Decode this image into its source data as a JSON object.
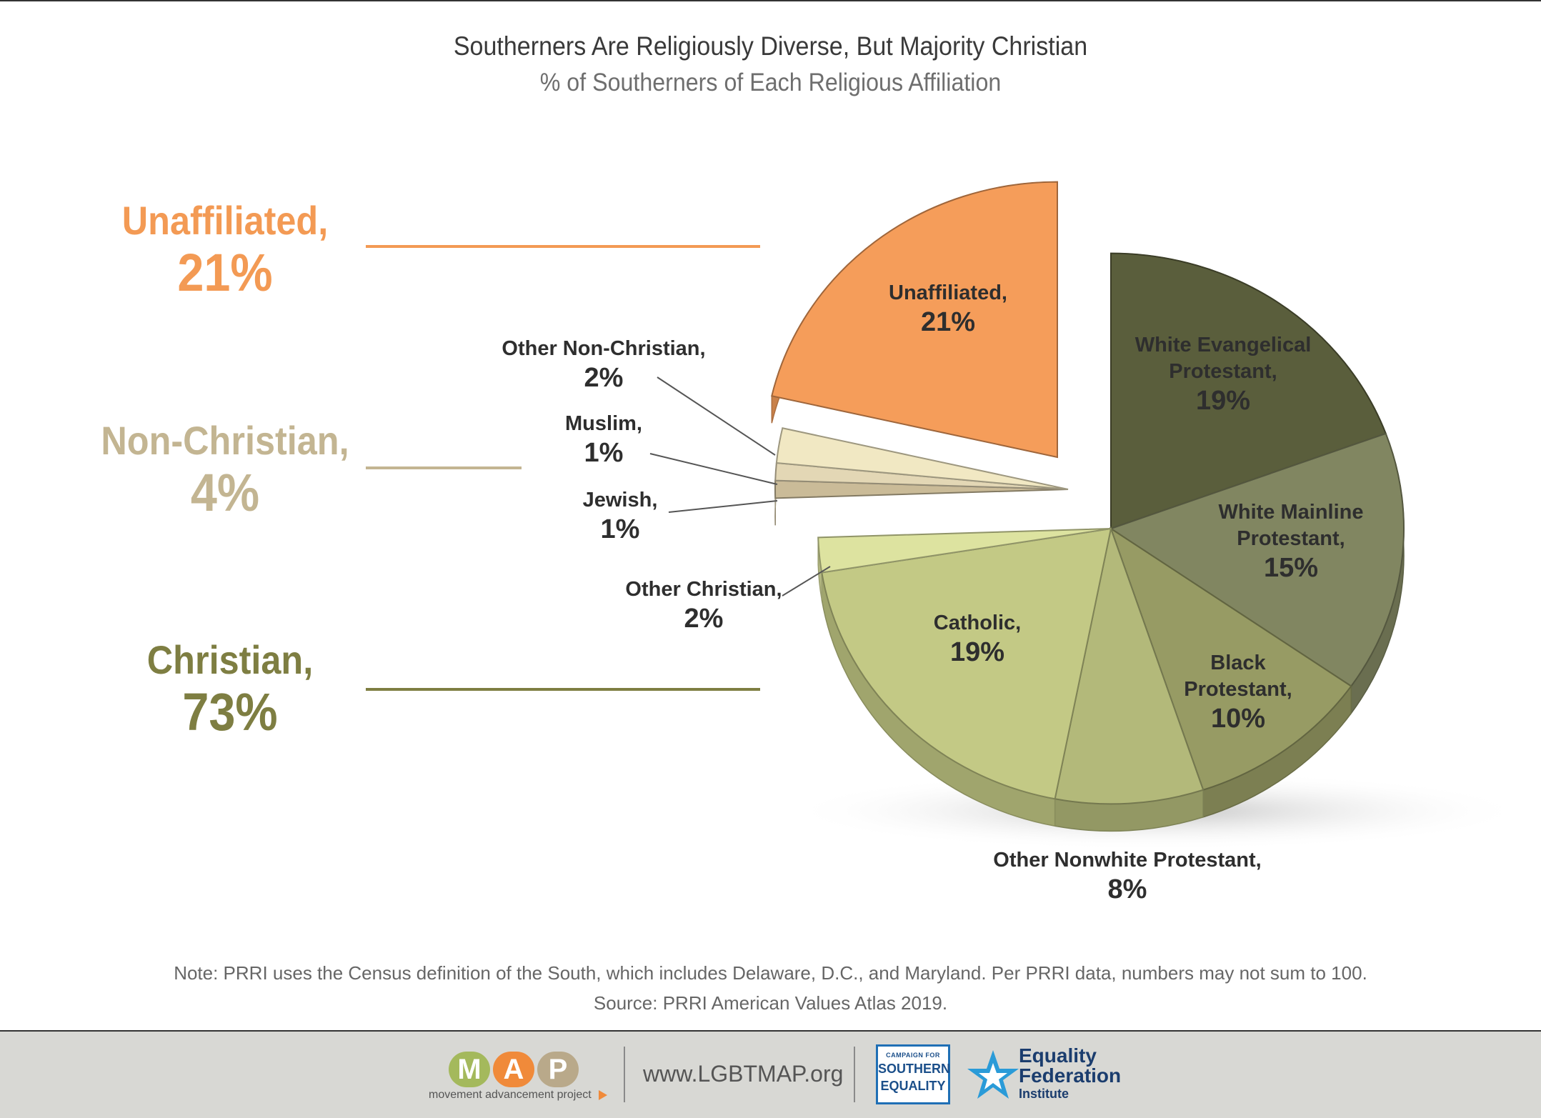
{
  "header": {
    "title": "Southerners Are Religiously Diverse, But Majority Christian",
    "subtitle": "% of Southerners of Each Religious Affiliation"
  },
  "groups": [
    {
      "name": "Unaffiliated,",
      "pct": "21%",
      "color": "#f39a54"
    },
    {
      "name": "Non-Christian,",
      "pct": "4%",
      "color": "#c3b592"
    },
    {
      "name": "Christian,",
      "pct": "73%",
      "color": "#7e7e42"
    }
  ],
  "chart_data": {
    "type": "pie",
    "title": "Southerners Are Religiously Diverse, But Majority Christian",
    "subtitle": "% of Southerners of Each Religious Affiliation",
    "slices": [
      {
        "label": "White Evangelical Protestant,",
        "value": 19,
        "group": "Christian",
        "color": "#5a5e3c"
      },
      {
        "label": "White Mainline Protestant,",
        "value": 15,
        "group": "Christian",
        "color": "#818661"
      },
      {
        "label": "Black Protestant,",
        "value": 10,
        "group": "Christian",
        "color": "#979b64"
      },
      {
        "label": "Other Nonwhite Protestant,",
        "value": 8,
        "group": "Christian",
        "color": "#b3b97a"
      },
      {
        "label": "Catholic,",
        "value": 19,
        "group": "Christian",
        "color": "#c3c985"
      },
      {
        "label": "Other Christian,",
        "value": 2,
        "group": "Christian",
        "color": "#dde3a0"
      },
      {
        "label": "Jewish,",
        "value": 1,
        "group": "Non-Christian",
        "color": "#cabb98"
      },
      {
        "label": "Muslim,",
        "value": 1,
        "group": "Non-Christian",
        "color": "#e3d7b5"
      },
      {
        "label": "Other Non-Christian,",
        "value": 2,
        "group": "Non-Christian",
        "color": "#f1e8c3"
      },
      {
        "label": "Unaffiliated,",
        "value": 21,
        "group": "Unaffiliated",
        "color": "#f59d5a"
      }
    ]
  },
  "notes": {
    "note": "Note: PRRI uses the Census definition of the South, which includes Delaware, D.C., and Maryland. Per PRRI data, numbers may not sum to 100.",
    "source": "Source: PRRI American Values Atlas 2019."
  },
  "footer": {
    "map_letters": [
      "M",
      "A",
      "P"
    ],
    "map_name": "movement advancement project",
    "url": "www.LGBTMAP.org",
    "cse_top": "CAMPAIGN FOR",
    "cse_1": "SOUTHERN",
    "cse_2": "EQUALITY",
    "efi_1": "Equality",
    "efi_2": "Federation",
    "efi_3": "Institute"
  }
}
